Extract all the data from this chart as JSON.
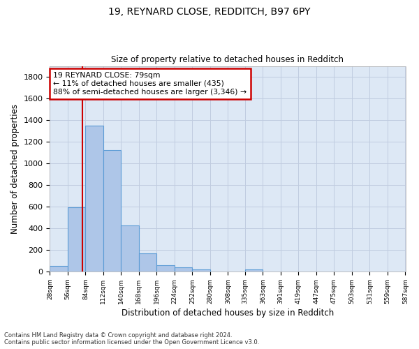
{
  "title1": "19, REYNARD CLOSE, REDDITCH, B97 6PY",
  "title2": "Size of property relative to detached houses in Redditch",
  "xlabel": "Distribution of detached houses by size in Redditch",
  "ylabel": "Number of detached properties",
  "footnote1": "Contains HM Land Registry data © Crown copyright and database right 2024.",
  "footnote2": "Contains public sector information licensed under the Open Government Licence v3.0.",
  "annotation_line1": "19 REYNARD CLOSE: 79sqm",
  "annotation_line2": "← 11% of detached houses are smaller (435)",
  "annotation_line3": "88% of semi-detached houses are larger (3,346) →",
  "property_sqm": 79,
  "bin_edges": [
    28,
    56,
    84,
    112,
    140,
    168,
    196,
    224,
    252,
    280,
    308,
    335,
    363,
    391,
    419,
    447,
    475,
    503,
    531,
    559,
    587
  ],
  "bar_heights": [
    50,
    595,
    1350,
    1120,
    425,
    170,
    60,
    38,
    18,
    0,
    0,
    20,
    0,
    0,
    0,
    0,
    0,
    0,
    0,
    0
  ],
  "bar_color": "#aec6e8",
  "bar_edge_color": "#5b9bd5",
  "vline_color": "#cc0000",
  "vline_x": 79,
  "annotation_box_color": "#cc0000",
  "background_color": "#ffffff",
  "axes_bg_color": "#dde8f5",
  "grid_color": "#c0cce0",
  "ylim": [
    0,
    1900
  ],
  "yticks": [
    0,
    200,
    400,
    600,
    800,
    1000,
    1200,
    1400,
    1600,
    1800
  ],
  "figsize": [
    6.0,
    5.0
  ],
  "dpi": 100
}
